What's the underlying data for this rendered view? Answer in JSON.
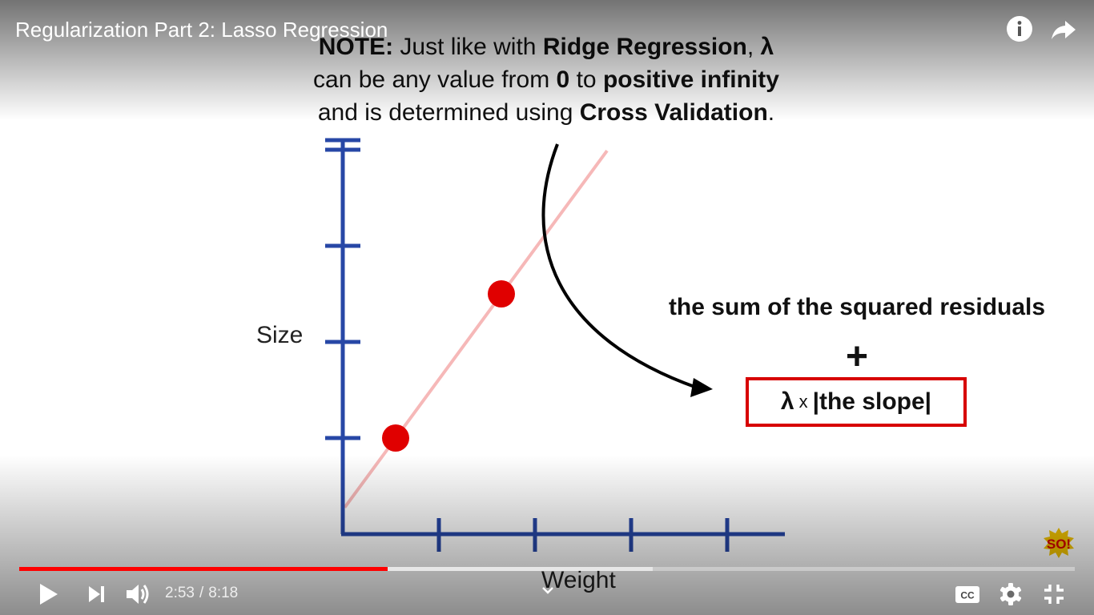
{
  "player": {
    "title": "Regularization Part 2: Lasso Regression",
    "current_time": "2:53",
    "time_separator": "/",
    "duration": "8:18",
    "played_fraction": 0.349,
    "buffered_fraction": 0.6,
    "icons": {
      "info": "info-icon",
      "share": "share-icon",
      "play": "play-icon",
      "next": "next-icon",
      "volume": "volume-icon",
      "chevron": "chevron-down-icon",
      "captions": "cc-icon",
      "settings": "gear-icon",
      "exit_fullscreen": "exit-fullscreen-icon"
    },
    "captions_label": "CC"
  },
  "slide": {
    "note_prefix": "NOTE:",
    "note_1": " Just like with ",
    "note_ridge": "Ridge Regression",
    "note_2": ", ",
    "note_lambda": "λ",
    "note_3": "can be any value from ",
    "note_zero": "0",
    "note_4": " to ",
    "note_inf": "positive infinity",
    "note_5": "and is determined using ",
    "note_cv": "Cross Validation",
    "note_6": ".",
    "eq_line1": "the sum of the squared residuals",
    "eq_plus": "+",
    "eq_lambda": "λ",
    "eq_times": "x",
    "eq_slope": "|the slope|",
    "colors": {
      "axis": "#2747a6",
      "point": "#e00000",
      "fit_line": "#f6b8b8",
      "box": "#d70000"
    }
  },
  "chart_data": {
    "type": "scatter",
    "xlabel": "Weight",
    "ylabel": "Size",
    "points": [
      {
        "x": 0.55,
        "y": 1.0
      },
      {
        "x": 1.65,
        "y": 2.5
      }
    ],
    "fit_line": {
      "slope": 1.36,
      "intercept": 0.25
    },
    "xlim": [
      0,
      4.6
    ],
    "ylim": [
      0,
      4.1
    ],
    "x_ticks": 4,
    "y_ticks": 4
  }
}
